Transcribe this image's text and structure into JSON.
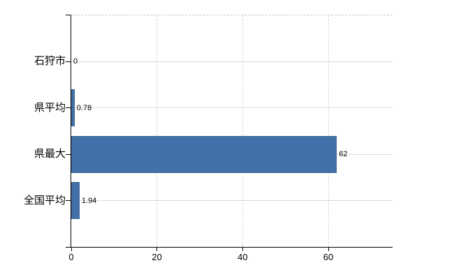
{
  "chart_data": {
    "type": "bar",
    "orientation": "horizontal",
    "title": "",
    "xlabel": "",
    "ylabel": "",
    "categories": [
      "石狩市",
      "県平均",
      "県最大",
      "全国平均"
    ],
    "values": [
      0,
      0.78,
      62,
      1.94
    ],
    "value_labels": [
      "0",
      "0.78",
      "62",
      "1.94"
    ],
    "xlim": [
      0,
      75
    ],
    "xticks": [
      0,
      20,
      40,
      60
    ],
    "xtick_labels": [
      "0",
      "20",
      "40",
      "60"
    ],
    "grid": true,
    "legend": false,
    "colors": {
      "bar": "#4270a8",
      "bar_border": "#35618f",
      "axis": "#000000",
      "h_gridline": "#dadada",
      "v_gridline": "#d6d6d6",
      "plot_top_border": "#c9c9c9",
      "text": "#000000",
      "background": "#ffffff"
    }
  }
}
